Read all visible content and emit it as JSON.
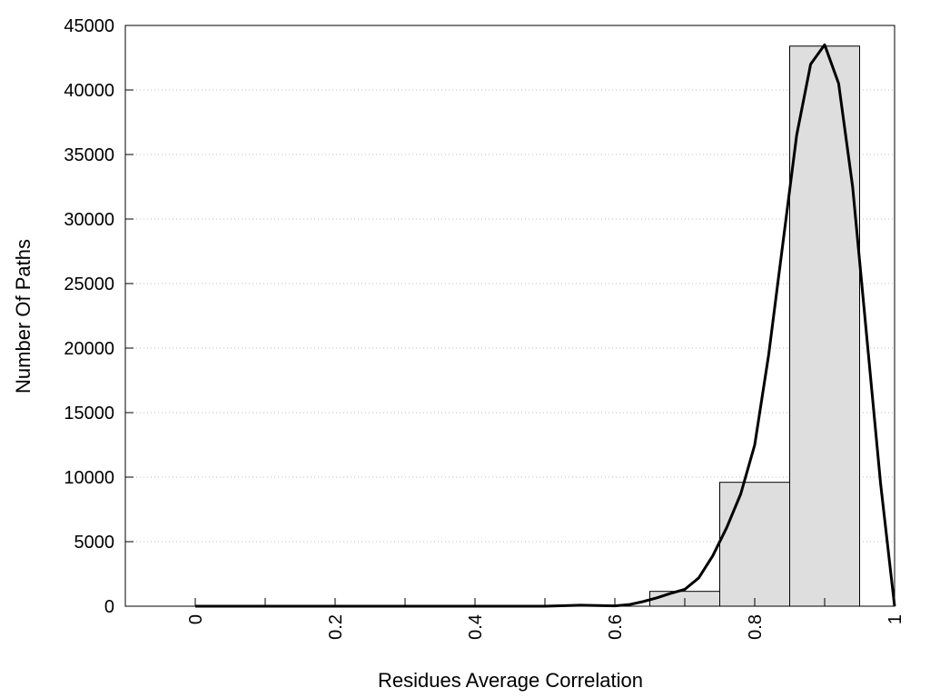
{
  "chart_data": {
    "type": "bar",
    "title": "",
    "xlabel": "Residues Average Correlation",
    "ylabel": "Number Of Paths",
    "xlim": [
      -0.1,
      1.0
    ],
    "ylim": [
      0,
      45000
    ],
    "grid": true,
    "legend": "none",
    "x_ticks": [
      0,
      0.2,
      0.4,
      0.6,
      0.8,
      1
    ],
    "x_tick_labels": [
      "0",
      "0.2",
      "0.4",
      "0.6",
      "0.8",
      "1"
    ],
    "x_minor_ticks": [
      0.1,
      0.3,
      0.5,
      0.7,
      0.9
    ],
    "y_ticks": [
      0,
      5000,
      10000,
      15000,
      20000,
      25000,
      30000,
      35000,
      40000,
      45000
    ],
    "y_tick_labels": [
      "0",
      "5000",
      "10000",
      "15000",
      "20000",
      "25000",
      "30000",
      "35000",
      "40000",
      "45000"
    ],
    "bars": [
      {
        "x0": 0.65,
        "x1": 0.75,
        "value": 1150
      },
      {
        "x0": 0.75,
        "x1": 0.85,
        "value": 9600
      },
      {
        "x0": 0.85,
        "x1": 0.95,
        "value": 43400
      }
    ],
    "fit_curve": {
      "x": [
        0,
        0.5,
        0.55,
        0.6,
        0.62,
        0.64,
        0.66,
        0.68,
        0.7,
        0.72,
        0.74,
        0.76,
        0.78,
        0.8,
        0.82,
        0.84,
        0.86,
        0.88,
        0.9,
        0.92,
        0.94,
        0.96,
        0.98,
        1.0
      ],
      "y": [
        0,
        0,
        80,
        30,
        120,
        350,
        650,
        1000,
        1300,
        2200,
        3900,
        6100,
        8700,
        12500,
        19500,
        28000,
        36500,
        42000,
        43500,
        40500,
        32500,
        21000,
        9500,
        0
      ]
    },
    "colors": {
      "bar_fill": "#dedede",
      "bar_stroke": "#000000",
      "curve": "#000000",
      "grid": "#bdbdbd"
    }
  }
}
